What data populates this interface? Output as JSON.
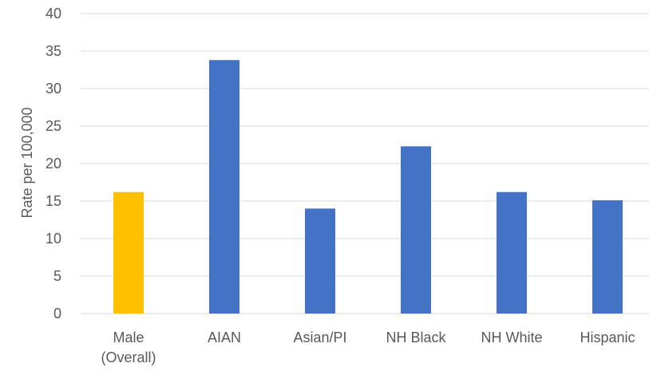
{
  "chart_data": {
    "type": "bar",
    "title": "",
    "xlabel": "",
    "ylabel": "Rate per 100,000",
    "ylim": [
      0,
      40
    ],
    "yticks": [
      0,
      5,
      10,
      15,
      20,
      25,
      30,
      35,
      40
    ],
    "grid": true,
    "legend": "none",
    "categories": [
      [
        "Male",
        "(Overall)"
      ],
      [
        "AIAN"
      ],
      [
        "Asian/PI"
      ],
      [
        "NH Black"
      ],
      [
        "NH White"
      ],
      [
        "Hispanic"
      ]
    ],
    "values": [
      16.2,
      33.8,
      14.0,
      22.3,
      16.2,
      15.1
    ],
    "colors": [
      "#ffc000",
      "#4472c4",
      "#4472c4",
      "#4472c4",
      "#4472c4",
      "#4472c4"
    ]
  }
}
